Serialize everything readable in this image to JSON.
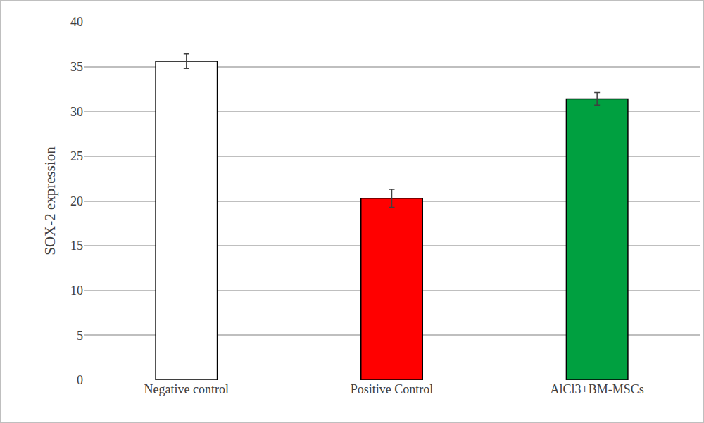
{
  "chart_data": {
    "type": "bar",
    "categories": [
      "Negative control",
      "Positive Control",
      "AlCl3+BM-MSCs"
    ],
    "values": [
      35.6,
      20.3,
      31.4
    ],
    "errors": [
      0.8,
      1.0,
      0.7
    ],
    "colors": [
      "#ffffff",
      "#ff0000",
      "#00a040"
    ],
    "y_label": "SOX-2 expression",
    "ylim": [
      0,
      40
    ],
    "yticks": [
      0,
      5,
      10,
      15,
      20,
      25,
      30,
      35,
      40
    ],
    "grid": true
  }
}
